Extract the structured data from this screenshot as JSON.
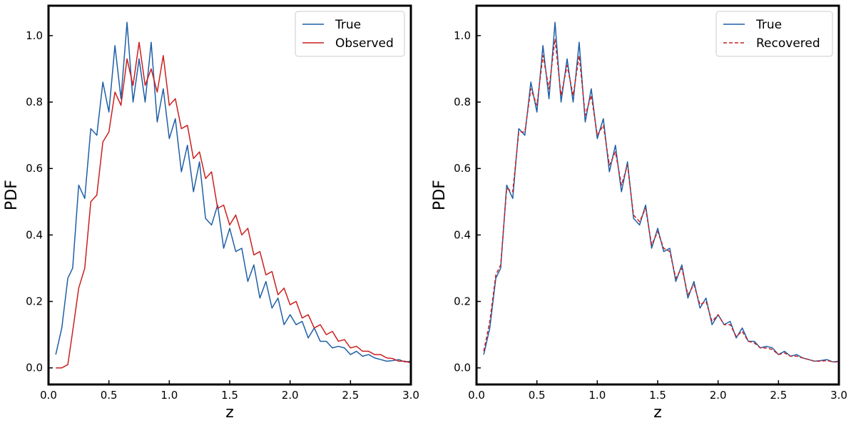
{
  "chart_data": [
    {
      "type": "line",
      "xlabel": "z",
      "ylabel": "PDF",
      "xlim": [
        0.0,
        3.0
      ],
      "ylim": [
        -0.05,
        1.09
      ],
      "xticks": [
        0.0,
        0.5,
        1.0,
        1.5,
        2.0,
        2.5,
        3.0
      ],
      "xtick_labels": [
        "0.0",
        "0.5",
        "1.0",
        "1.5",
        "2.0",
        "2.5",
        "3.0"
      ],
      "yticks": [
        0.0,
        0.2,
        0.4,
        0.6,
        0.8,
        1.0
      ],
      "ytick_labels": [
        "0.0",
        "0.2",
        "0.4",
        "0.6",
        "0.8",
        "1.0"
      ],
      "legend_position": "top-right",
      "series": [
        {
          "name": "True",
          "color": "#1f5fa6",
          "style": "solid",
          "x": [
            0.06,
            0.11,
            0.16,
            0.2,
            0.25,
            0.3,
            0.35,
            0.4,
            0.45,
            0.5,
            0.55,
            0.6,
            0.65,
            0.7,
            0.75,
            0.8,
            0.85,
            0.9,
            0.95,
            1.0,
            1.05,
            1.1,
            1.15,
            1.2,
            1.25,
            1.3,
            1.35,
            1.4,
            1.45,
            1.5,
            1.55,
            1.6,
            1.65,
            1.7,
            1.75,
            1.8,
            1.85,
            1.9,
            1.95,
            2.0,
            2.05,
            2.1,
            2.15,
            2.2,
            2.25,
            2.3,
            2.35,
            2.4,
            2.45,
            2.5,
            2.55,
            2.6,
            2.65,
            2.7,
            2.75,
            2.8,
            2.85,
            2.9,
            2.95,
            3.0
          ],
          "y": [
            0.04,
            0.12,
            0.27,
            0.3,
            0.55,
            0.51,
            0.72,
            0.7,
            0.86,
            0.77,
            0.97,
            0.81,
            1.04,
            0.8,
            0.93,
            0.8,
            0.98,
            0.74,
            0.84,
            0.69,
            0.75,
            0.59,
            0.67,
            0.53,
            0.62,
            0.45,
            0.43,
            0.49,
            0.36,
            0.42,
            0.35,
            0.36,
            0.26,
            0.31,
            0.21,
            0.26,
            0.18,
            0.21,
            0.13,
            0.16,
            0.13,
            0.14,
            0.09,
            0.12,
            0.08,
            0.08,
            0.06,
            0.065,
            0.06,
            0.04,
            0.05,
            0.035,
            0.04,
            0.03,
            0.025,
            0.02,
            0.022,
            0.025,
            0.018,
            0.02
          ]
        },
        {
          "name": "Observed",
          "color": "#cc1f1f",
          "style": "solid",
          "x": [
            0.06,
            0.11,
            0.16,
            0.2,
            0.25,
            0.3,
            0.35,
            0.4,
            0.45,
            0.5,
            0.55,
            0.6,
            0.65,
            0.7,
            0.75,
            0.8,
            0.85,
            0.9,
            0.95,
            1.0,
            1.05,
            1.1,
            1.15,
            1.2,
            1.25,
            1.3,
            1.35,
            1.4,
            1.45,
            1.5,
            1.55,
            1.6,
            1.65,
            1.7,
            1.75,
            1.8,
            1.85,
            1.9,
            1.95,
            2.0,
            2.05,
            2.1,
            2.15,
            2.2,
            2.25,
            2.3,
            2.35,
            2.4,
            2.45,
            2.5,
            2.55,
            2.6,
            2.65,
            2.7,
            2.75,
            2.8,
            2.85,
            2.9,
            2.95,
            3.0
          ],
          "y": [
            0.0,
            0.0,
            0.01,
            0.11,
            0.24,
            0.3,
            0.5,
            0.52,
            0.68,
            0.71,
            0.83,
            0.79,
            0.93,
            0.85,
            0.98,
            0.85,
            0.9,
            0.83,
            0.94,
            0.79,
            0.81,
            0.72,
            0.73,
            0.63,
            0.65,
            0.57,
            0.59,
            0.48,
            0.49,
            0.43,
            0.46,
            0.4,
            0.42,
            0.34,
            0.35,
            0.28,
            0.29,
            0.22,
            0.24,
            0.19,
            0.2,
            0.15,
            0.16,
            0.12,
            0.13,
            0.1,
            0.11,
            0.08,
            0.085,
            0.06,
            0.065,
            0.05,
            0.05,
            0.04,
            0.04,
            0.03,
            0.028,
            0.02,
            0.02,
            0.015
          ]
        }
      ]
    },
    {
      "type": "line",
      "xlabel": "z",
      "ylabel": "PDF",
      "xlim": [
        0.0,
        3.0
      ],
      "ylim": [
        -0.05,
        1.09
      ],
      "xticks": [
        0.0,
        0.5,
        1.0,
        1.5,
        2.0,
        2.5,
        3.0
      ],
      "xtick_labels": [
        "0.0",
        "0.5",
        "1.0",
        "1.5",
        "2.0",
        "2.5",
        "3.0"
      ],
      "yticks": [
        0.0,
        0.2,
        0.4,
        0.6,
        0.8,
        1.0
      ],
      "ytick_labels": [
        "0.0",
        "0.2",
        "0.4",
        "0.6",
        "0.8",
        "1.0"
      ],
      "legend_position": "top-right",
      "series": [
        {
          "name": "True",
          "color": "#1f5fa6",
          "style": "solid",
          "x": [
            0.06,
            0.11,
            0.16,
            0.2,
            0.25,
            0.3,
            0.35,
            0.4,
            0.45,
            0.5,
            0.55,
            0.6,
            0.65,
            0.7,
            0.75,
            0.8,
            0.85,
            0.9,
            0.95,
            1.0,
            1.05,
            1.1,
            1.15,
            1.2,
            1.25,
            1.3,
            1.35,
            1.4,
            1.45,
            1.5,
            1.55,
            1.6,
            1.65,
            1.7,
            1.75,
            1.8,
            1.85,
            1.9,
            1.95,
            2.0,
            2.05,
            2.1,
            2.15,
            2.2,
            2.25,
            2.3,
            2.35,
            2.4,
            2.45,
            2.5,
            2.55,
            2.6,
            2.65,
            2.7,
            2.75,
            2.8,
            2.85,
            2.9,
            2.95,
            3.0
          ],
          "y": [
            0.04,
            0.12,
            0.27,
            0.3,
            0.55,
            0.51,
            0.72,
            0.7,
            0.86,
            0.77,
            0.97,
            0.81,
            1.04,
            0.8,
            0.93,
            0.8,
            0.98,
            0.74,
            0.84,
            0.69,
            0.75,
            0.59,
            0.67,
            0.53,
            0.62,
            0.45,
            0.43,
            0.49,
            0.36,
            0.42,
            0.35,
            0.36,
            0.26,
            0.31,
            0.21,
            0.26,
            0.18,
            0.21,
            0.13,
            0.16,
            0.13,
            0.14,
            0.09,
            0.12,
            0.08,
            0.08,
            0.06,
            0.065,
            0.06,
            0.04,
            0.05,
            0.035,
            0.04,
            0.03,
            0.025,
            0.02,
            0.022,
            0.025,
            0.018,
            0.02
          ]
        },
        {
          "name": "Recovered",
          "color": "#cc1f1f",
          "style": "dashed",
          "x": [
            0.06,
            0.11,
            0.16,
            0.2,
            0.25,
            0.3,
            0.35,
            0.4,
            0.45,
            0.5,
            0.55,
            0.6,
            0.65,
            0.7,
            0.75,
            0.8,
            0.85,
            0.9,
            0.95,
            1.0,
            1.05,
            1.1,
            1.15,
            1.2,
            1.25,
            1.3,
            1.35,
            1.4,
            1.45,
            1.5,
            1.55,
            1.6,
            1.65,
            1.7,
            1.75,
            1.8,
            1.85,
            1.9,
            1.95,
            2.0,
            2.05,
            2.1,
            2.15,
            2.2,
            2.25,
            2.3,
            2.35,
            2.4,
            2.45,
            2.5,
            2.55,
            2.6,
            2.65,
            2.7,
            2.75,
            2.8,
            2.85,
            2.9,
            2.95,
            3.0
          ],
          "y": [
            0.05,
            0.14,
            0.28,
            0.31,
            0.54,
            0.53,
            0.71,
            0.71,
            0.84,
            0.79,
            0.94,
            0.84,
            0.99,
            0.82,
            0.91,
            0.82,
            0.94,
            0.76,
            0.82,
            0.7,
            0.73,
            0.61,
            0.65,
            0.55,
            0.61,
            0.46,
            0.44,
            0.48,
            0.37,
            0.41,
            0.36,
            0.35,
            0.27,
            0.3,
            0.22,
            0.25,
            0.19,
            0.2,
            0.14,
            0.16,
            0.13,
            0.13,
            0.095,
            0.11,
            0.08,
            0.075,
            0.06,
            0.06,
            0.055,
            0.04,
            0.045,
            0.035,
            0.035,
            0.03,
            0.025,
            0.02,
            0.02,
            0.022,
            0.018,
            0.018
          ]
        }
      ]
    }
  ]
}
